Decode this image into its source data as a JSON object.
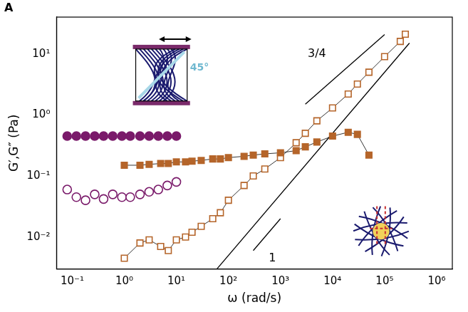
{
  "chart_data": {
    "type": "scatter",
    "panel_label": "A",
    "x_label": "ω (rad/s)",
    "y_label": "G′,G″ (Pa)",
    "log": true,
    "grid": false,
    "xlim": [
      0.05,
      2000000
    ],
    "ylim": [
      0.003,
      40
    ],
    "xticks": [
      {
        "value": 0.1,
        "label": "10⁻¹"
      },
      {
        "value": 1,
        "label": "10⁰"
      },
      {
        "value": 10,
        "label": "10¹"
      },
      {
        "value": 100,
        "label": "10²"
      },
      {
        "value": 1000,
        "label": "10³"
      },
      {
        "value": 10000,
        "label": "10⁴"
      },
      {
        "value": 100000,
        "label": "10⁵"
      },
      {
        "value": 1000000,
        "label": "10⁶"
      }
    ],
    "yticks": [
      {
        "value": 0.01,
        "label": "10⁻²"
      },
      {
        "value": 0.1,
        "label": "10⁻¹"
      },
      {
        "value": 1,
        "label": "10⁰"
      },
      {
        "value": 10,
        "label": "10¹"
      }
    ],
    "series": [
      {
        "marker": "circle",
        "line_style": "none",
        "color": "#7a1a6a",
        "x": [
          0.08,
          0.12,
          0.18,
          0.27,
          0.4,
          0.6,
          0.9,
          1.3,
          2,
          3,
          4.5,
          6.7,
          10
        ],
        "values": [
          0.45,
          0.45,
          0.45,
          0.45,
          0.45,
          0.45,
          0.45,
          0.45,
          0.45,
          0.45,
          0.45,
          0.45,
          0.45
        ]
      },
      {
        "marker": "open_circle",
        "line_style": "none",
        "color": "#7a1a6a",
        "x": [
          0.08,
          0.12,
          0.18,
          0.27,
          0.4,
          0.6,
          0.9,
          1.3,
          2,
          3,
          4.5,
          6.7,
          10
        ],
        "values": [
          0.06,
          0.045,
          0.04,
          0.05,
          0.042,
          0.05,
          0.045,
          0.045,
          0.05,
          0.055,
          0.06,
          0.07,
          0.08
        ]
      },
      {
        "marker": "square",
        "line_style": "solid",
        "color": "#b5652a",
        "x": [
          1,
          2,
          3,
          5,
          7,
          10,
          15,
          20,
          30,
          50,
          70,
          100,
          200,
          300,
          500,
          1000,
          2000,
          3000,
          5000,
          10000,
          20000,
          30000,
          50000
        ],
        "values": [
          0.15,
          0.15,
          0.155,
          0.16,
          0.16,
          0.17,
          0.17,
          0.175,
          0.18,
          0.19,
          0.19,
          0.2,
          0.21,
          0.22,
          0.23,
          0.24,
          0.26,
          0.3,
          0.36,
          0.45,
          0.52,
          0.48,
          0.22
        ]
      },
      {
        "marker": "open_square",
        "line_style": "solid",
        "color": "#b5652a",
        "x": [
          1,
          2,
          3,
          5,
          7,
          10,
          15,
          20,
          30,
          50,
          70,
          100,
          200,
          300,
          500,
          1000,
          2000,
          3000,
          5000,
          10000,
          20000,
          30000,
          50000,
          100000,
          200000,
          250000
        ],
        "values": [
          0.0045,
          0.008,
          0.009,
          0.007,
          0.006,
          0.009,
          0.01,
          0.012,
          0.015,
          0.02,
          0.025,
          0.04,
          0.07,
          0.1,
          0.13,
          0.2,
          0.35,
          0.5,
          0.8,
          1.3,
          2.2,
          3.2,
          5,
          9,
          16,
          21
        ]
      },
      {
        "marker": "none",
        "line_style": "solid",
        "color": "#000000",
        "x": [
          60,
          300000
        ],
        "values": [
          0.003,
          15
        ]
      },
      {
        "marker": "none",
        "line_style": "solid",
        "color": "#000000",
        "x": [
          3000,
          100000
        ],
        "values": [
          1.5,
          20.7
        ]
      },
      {
        "marker": "none",
        "line_style": "solid",
        "color": "#000000",
        "x": [
          300,
          1000
        ],
        "values": [
          0.006,
          0.02
        ]
      }
    ],
    "annotations": [
      {
        "text": "3/4",
        "x": 5000,
        "y": 10
      },
      {
        "text": "1",
        "x": 700,
        "y": 0.0045
      }
    ],
    "inset_labels": [
      "45°"
    ]
  }
}
